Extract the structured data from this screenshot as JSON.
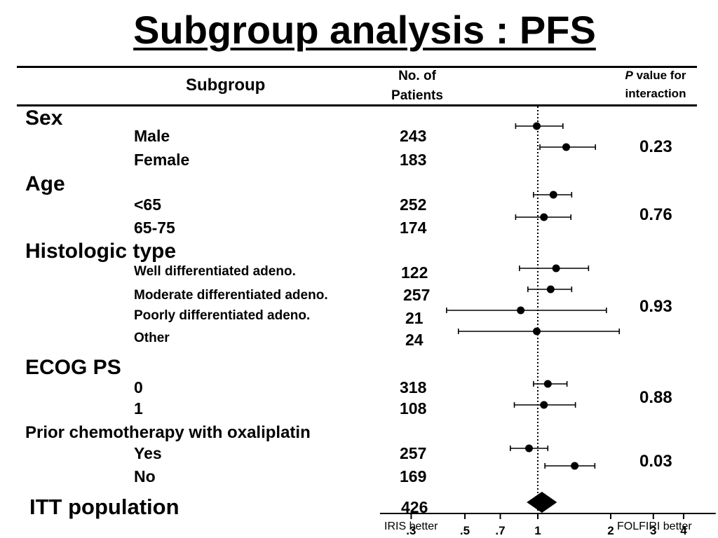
{
  "title": "Subgroup analysis : PFS",
  "header": {
    "subgroup": "Subgroup",
    "patients_line1": "No. of",
    "patients_line2": "Patients",
    "p_italic": "P",
    "p_line1": " value for",
    "p_line2": "interaction"
  },
  "categories": [
    {
      "label": "Sex",
      "p_value": "0.23",
      "rows": [
        {
          "label": "Male",
          "n": "243"
        },
        {
          "label": "Female",
          "n": "183"
        }
      ]
    },
    {
      "label": "Age",
      "p_value": "0.76",
      "rows": [
        {
          "label": "<65",
          "n": "252"
        },
        {
          "label": "65-75",
          "n": "174"
        }
      ]
    },
    {
      "label": "Histologic type",
      "p_value": "0.93",
      "rows": [
        {
          "label": "Well differentiated adeno.",
          "n": "122"
        },
        {
          "label": "Moderate differentiated adeno.",
          "n": "257"
        },
        {
          "label": "Poorly differentiated adeno.",
          "n": "21"
        },
        {
          "label": "Other",
          "n": "24"
        }
      ]
    },
    {
      "label": "ECOG PS",
      "p_value": "0.88",
      "rows": [
        {
          "label": "0",
          "n": "318"
        },
        {
          "label": "1",
          "n": "108"
        }
      ]
    },
    {
      "label": "Prior chemotherapy with oxaliplatin",
      "p_value": "0.03",
      "rows": [
        {
          "label": "Yes",
          "n": "257"
        },
        {
          "label": "No",
          "n": "169"
        }
      ]
    }
  ],
  "itt": {
    "label": "ITT population",
    "n": "426"
  },
  "axis": {
    "left_label": "IRIS better",
    "right_label": "FOLFIRI better"
  },
  "chart_data": {
    "type": "forest",
    "scale": "log",
    "xlim": [
      0.22,
      5.5
    ],
    "reference_line": 1,
    "x_ticks": [
      {
        "value": 0.3,
        "label": ".3"
      },
      {
        "value": 0.5,
        "label": ".5"
      },
      {
        "value": 0.7,
        "label": ".7"
      },
      {
        "value": 1,
        "label": "1"
      },
      {
        "value": 2,
        "label": "2"
      },
      {
        "value": 3,
        "label": "3"
      },
      {
        "value": 4,
        "label": "4"
      }
    ],
    "points": [
      {
        "label": "Male",
        "estimate": 0.99,
        "lower": 0.81,
        "upper": 1.27
      },
      {
        "label": "Female",
        "estimate": 1.31,
        "lower": 1.02,
        "upper": 1.73
      },
      {
        "label": "<65",
        "estimate": 1.16,
        "lower": 0.96,
        "upper": 1.38
      },
      {
        "label": "65-75",
        "estimate": 1.06,
        "lower": 0.81,
        "upper": 1.37
      },
      {
        "label": "Well differentiated adeno.",
        "estimate": 1.19,
        "lower": 0.84,
        "upper": 1.62
      },
      {
        "label": "Moderate differentiated adeno.",
        "estimate": 1.13,
        "lower": 0.91,
        "upper": 1.38
      },
      {
        "label": "Poorly differentiated adeno.",
        "estimate": 0.85,
        "lower": 0.42,
        "upper": 1.92
      },
      {
        "label": "Other",
        "estimate": 0.99,
        "lower": 0.47,
        "upper": 2.17
      },
      {
        "label": "0",
        "estimate": 1.1,
        "lower": 0.96,
        "upper": 1.32
      },
      {
        "label": "1",
        "estimate": 1.06,
        "lower": 0.8,
        "upper": 1.43
      },
      {
        "label": "Yes",
        "estimate": 0.92,
        "lower": 0.77,
        "upper": 1.1
      },
      {
        "label": "No",
        "estimate": 1.42,
        "lower": 1.07,
        "upper": 1.72
      }
    ],
    "overall": {
      "label": "ITT population",
      "estimate": 1.04,
      "lower": 0.9,
      "upper": 1.2
    }
  }
}
